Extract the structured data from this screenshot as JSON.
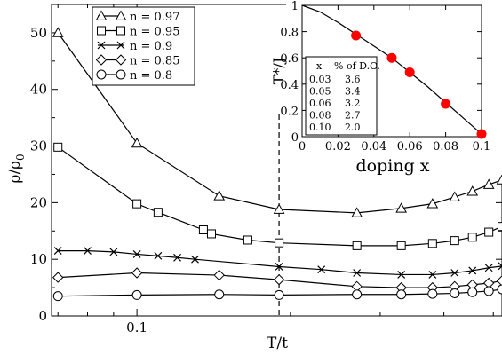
{
  "chart_data": [
    {
      "type": "line",
      "xlabel": "T/t",
      "ylabel_main": "ρ/ρ",
      "ylabel_sub": "0",
      "xscale": "log",
      "xlim": [
        0.068,
        0.52
      ],
      "ylim": [
        0,
        55
      ],
      "xticks_labeled": [
        "0.1"
      ],
      "yticks": [
        "0",
        "10",
        "20",
        "30",
        "40",
        "50"
      ],
      "vline_x": 0.19,
      "legend_position": "top-left",
      "series": [
        {
          "name": "n = 0.97",
          "marker": "triangle",
          "x": [
            0.07,
            0.1,
            0.145,
            0.19,
            0.27,
            0.33,
            0.38,
            0.42,
            0.455,
            0.49,
            0.52
          ],
          "y": [
            50,
            30.5,
            21.2,
            18.8,
            18.2,
            19,
            19.8,
            21,
            22,
            23.2,
            24
          ]
        },
        {
          "name": "n = 0.95",
          "marker": "square",
          "x": [
            0.07,
            0.1,
            0.11,
            0.135,
            0.14,
            0.165,
            0.19,
            0.27,
            0.33,
            0.38,
            0.42,
            0.455,
            0.49,
            0.52
          ],
          "y": [
            29.8,
            19.8,
            18.3,
            15.2,
            14.5,
            13.4,
            12.9,
            12.4,
            12.4,
            12.8,
            13.3,
            13.9,
            14.8,
            15.8
          ]
        },
        {
          "name": "n = 0.9",
          "marker": "x",
          "x": [
            0.07,
            0.08,
            0.09,
            0.1,
            0.11,
            0.12,
            0.13,
            0.19,
            0.23,
            0.27,
            0.33,
            0.38,
            0.42,
            0.455,
            0.49,
            0.52
          ],
          "y": [
            11.5,
            11.5,
            11.3,
            10.9,
            10.6,
            10.3,
            10.0,
            8.7,
            8.2,
            7.6,
            7.3,
            7.3,
            7.6,
            8.0,
            8.5,
            8.8
          ]
        },
        {
          "name": "n = 0.85",
          "marker": "diamond",
          "x": [
            0.07,
            0.1,
            0.145,
            0.19,
            0.27,
            0.33,
            0.38,
            0.42,
            0.455,
            0.49,
            0.52
          ],
          "y": [
            6.8,
            7.6,
            7.2,
            6.4,
            5.2,
            5.0,
            5.0,
            5.2,
            5.5,
            5.8,
            6.2
          ]
        },
        {
          "name": "n = 0.8",
          "marker": "circle",
          "x": [
            0.07,
            0.1,
            0.145,
            0.19,
            0.27,
            0.33,
            0.38,
            0.42,
            0.455,
            0.49,
            0.52
          ],
          "y": [
            3.5,
            3.7,
            3.8,
            3.7,
            3.8,
            3.8,
            3.9,
            4.0,
            4.2,
            4.4,
            4.7
          ]
        }
      ]
    },
    {
      "type": "line",
      "xlabel": "doping x",
      "ylabel": "T*/J",
      "xlim": [
        0,
        0.1
      ],
      "ylim": [
        0,
        1
      ],
      "xticks": [
        "0",
        "0.02",
        "0.04",
        "0.06",
        "0.08",
        "0.1"
      ],
      "yticks": [
        "0",
        "0.2",
        "0.4",
        "0.6",
        "0.8",
        "1"
      ],
      "points": {
        "x": [
          0.03,
          0.05,
          0.06,
          0.08,
          0.1
        ],
        "y": [
          0.77,
          0.6,
          0.49,
          0.25,
          0.02
        ],
        "color": "#ff0000"
      },
      "curve": {
        "x": [
          0,
          0.01,
          0.02,
          0.03,
          0.04,
          0.05,
          0.06,
          0.07,
          0.08,
          0.09,
          0.1
        ],
        "y": [
          1.03,
          0.95,
          0.87,
          0.78,
          0.69,
          0.6,
          0.49,
          0.38,
          0.26,
          0.14,
          0.02
        ]
      },
      "table": {
        "headers": [
          "x",
          "% of D.O."
        ],
        "rows": [
          [
            "0.03",
            "3.6"
          ],
          [
            "0.05",
            "3.4"
          ],
          [
            "0.06",
            "3.2"
          ],
          [
            "0.08",
            "2.7"
          ],
          [
            "0.10",
            "2.0"
          ]
        ]
      }
    }
  ]
}
